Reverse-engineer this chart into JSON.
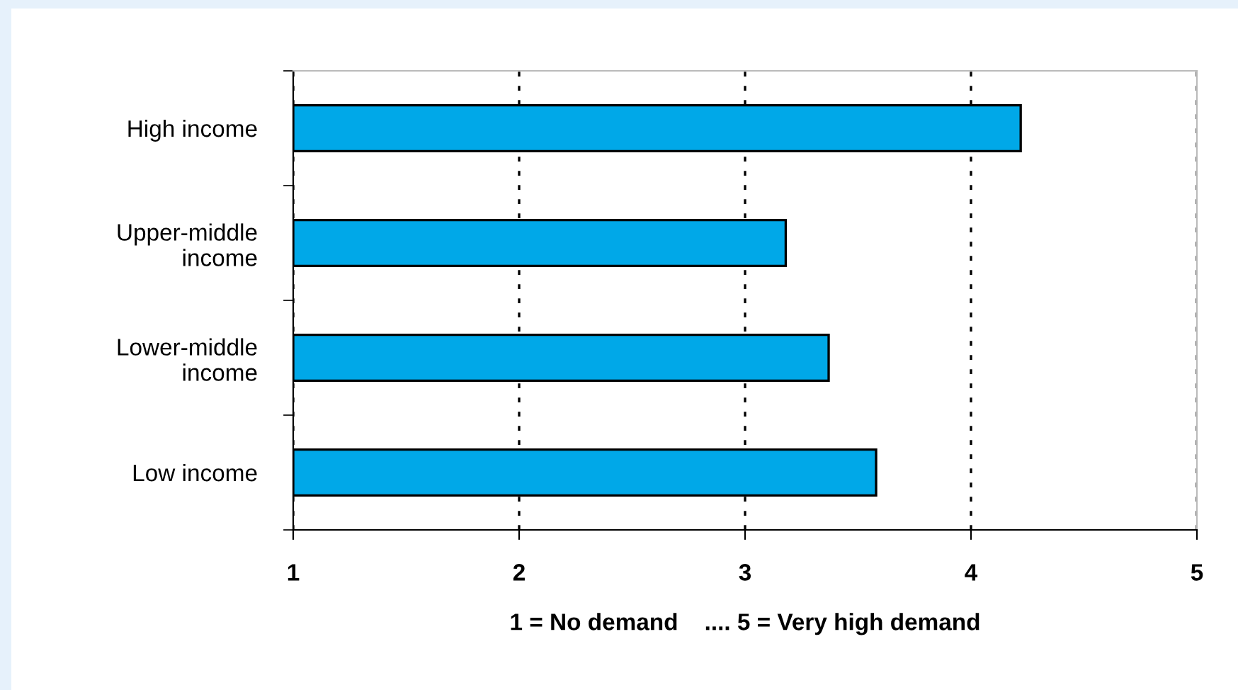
{
  "chart_data": {
    "type": "bar",
    "orientation": "horizontal",
    "xlabel": "1 = No demand    .... 5 = Very high demand",
    "categories": [
      "High income",
      "Upper-middle\nincome",
      "Lower-middle\nincome",
      "Low income"
    ],
    "values": [
      4.22,
      3.18,
      3.37,
      3.58
    ],
    "color": "#00a8e8",
    "xlim": [
      1,
      5
    ],
    "xticks": [
      1,
      2,
      3,
      4,
      5
    ],
    "grid": "x",
    "line_style": "dotted"
  }
}
